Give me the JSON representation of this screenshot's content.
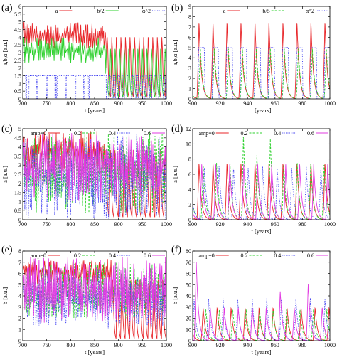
{
  "colors": {
    "red": "#e8262a",
    "green": "#2fd12f",
    "blue": "#3b3bf0",
    "magenta": "#e23be2",
    "purple": "#8d1a9a"
  },
  "chart_data": [
    {
      "panel": "(a)",
      "type": "line",
      "xlabel": "t [years]",
      "ylabel": "a,b,α [a.u.]",
      "xlim": [
        700,
        1000
      ],
      "ylim": [
        0,
        6
      ],
      "xticks": [
        700,
        750,
        800,
        850,
        900,
        950,
        1000
      ],
      "yticks": [
        0,
        0.5,
        1,
        1.5,
        2,
        2.5,
        3,
        3.5,
        4,
        4.5,
        5,
        5.5,
        6
      ],
      "legend": "top",
      "series": [
        {
          "name": "a",
          "color": "red",
          "style": "solid",
          "model": "chaos",
          "lo": 3.2,
          "hi": 5.0,
          "switch": 870,
          "lo2": 0,
          "hi2": 4.8,
          "period2": 9.5
        },
        {
          "name": "b/2",
          "color": "green",
          "style": "solid",
          "model": "chaos",
          "lo": 2.3,
          "hi": 4.0,
          "switch": 870,
          "lo2": 0,
          "hi2": 3.9,
          "period2": 9.5
        },
        {
          "name": "α^2",
          "color": "blue",
          "style": "dotted",
          "model": "alpha",
          "level": 1.5,
          "dips": [
            707,
            712,
            730,
            750,
            768,
            771,
            790,
            810,
            828,
            838
          ],
          "switch": 870,
          "hi2": 1.5,
          "period2": 9.5
        }
      ]
    },
    {
      "panel": "(b)",
      "type": "line",
      "xlabel": "t [years]",
      "ylabel": "a,b,α [a.u.]",
      "xlim": [
        900,
        1000
      ],
      "ylim": [
        0,
        9
      ],
      "xticks": [
        900,
        920,
        940,
        960,
        980,
        1000
      ],
      "yticks": [
        0,
        1,
        2,
        3,
        4,
        5,
        6,
        7,
        8,
        9
      ],
      "legend": "top",
      "series": [
        {
          "name": "a",
          "color": "red",
          "style": "solid",
          "model": "spike",
          "period": 10.2,
          "phase": 903,
          "peak": 7.6
        },
        {
          "name": "b/5",
          "color": "green",
          "style": "dashed",
          "model": "spike",
          "period": 10.2,
          "phase": 904,
          "peak": 5.0
        },
        {
          "name": "α^2",
          "color": "blue",
          "style": "dotted",
          "model": "plateau",
          "period": 10.2,
          "phase": 904,
          "peak": 5.0
        }
      ]
    },
    {
      "panel": "(c)",
      "type": "line",
      "xlabel": "",
      "ylabel": "a [a.u.]",
      "xlim": [
        700,
        1000
      ],
      "ylim": [
        0,
        5
      ],
      "xticks": [
        700,
        750,
        800,
        850,
        900,
        950,
        1000
      ],
      "yticks": [
        0,
        0.5,
        1,
        1.5,
        2,
        2.5,
        3,
        3.5,
        4,
        4.5,
        5
      ],
      "legend": "top",
      "series": [
        {
          "name": "amp=0",
          "color": "red",
          "style": "solid",
          "model": "chaos",
          "lo": 2.6,
          "hi": 4.9,
          "switch": 868,
          "lo2": 0,
          "hi2": 4.6,
          "period2": 9.5
        },
        {
          "name": "0.2",
          "color": "green",
          "style": "dashed",
          "model": "chaos",
          "lo": 0.3,
          "hi": 4.9,
          "switch": 2000
        },
        {
          "name": "0.4",
          "color": "blue",
          "style": "dotted",
          "model": "chaos",
          "lo": 0.0,
          "hi": 4.8,
          "switch": 2000
        },
        {
          "name": "0.6",
          "color": "magenta",
          "style": "solid",
          "model": "chaos",
          "lo": 1.0,
          "hi": 4.8,
          "switch": 2000
        }
      ]
    },
    {
      "panel": "(d)",
      "type": "line",
      "xlabel": "t [years]",
      "ylabel": "a [a.u.]",
      "xlim": [
        900,
        1000
      ],
      "ylim": [
        0,
        12
      ],
      "xticks": [
        900,
        920,
        940,
        960,
        980,
        1000
      ],
      "yticks": [
        0,
        2,
        4,
        6,
        8,
        10,
        12
      ],
      "legend": "top",
      "series": [
        {
          "name": "amp=0",
          "color": "red",
          "style": "solid",
          "model": "spike",
          "period": 10.2,
          "phase": 903,
          "peak": 7.6
        },
        {
          "name": "0.2",
          "color": "green",
          "style": "dashed",
          "model": "spike",
          "period": 9.8,
          "phase": 906,
          "peak": 7.5,
          "boost": [
            [
              938,
              11.3
            ],
            [
              943,
              8.5
            ],
            [
              955,
              10.9
            ]
          ]
        },
        {
          "name": "0.4",
          "color": "blue",
          "style": "dotted",
          "model": "spike",
          "period": 10.6,
          "phase": 907,
          "peak": 7.0
        },
        {
          "name": "0.6",
          "color": "magenta",
          "style": "solid",
          "model": "spike",
          "period": 10.2,
          "phase": 905,
          "peak": 7.3
        }
      ]
    },
    {
      "panel": "(e)",
      "type": "line",
      "xlabel": "t [years]",
      "ylabel": "b [a.u.]",
      "xlim": [
        700,
        1000
      ],
      "ylim": [
        0,
        8
      ],
      "xticks": [
        700,
        750,
        800,
        850,
        900,
        950,
        1000
      ],
      "yticks": [
        0,
        1,
        2,
        3,
        4,
        5,
        6,
        7,
        8
      ],
      "legend": "top",
      "series": [
        {
          "name": "amp=0",
          "color": "red",
          "style": "solid",
          "model": "chaos",
          "lo": 5.0,
          "hi": 7.3,
          "switch": 885,
          "lo2": 0,
          "hi2": 6.5,
          "period2": 9.5
        },
        {
          "name": "0.2",
          "color": "green",
          "style": "dashed",
          "model": "chaos",
          "lo": 2.0,
          "hi": 7.0,
          "switch": 2000
        },
        {
          "name": "0.4",
          "color": "blue",
          "style": "dotted",
          "model": "chaos",
          "lo": 1.0,
          "hi": 6.5,
          "switch": 2000
        },
        {
          "name": "0.6",
          "color": "magenta",
          "style": "solid",
          "model": "chaos",
          "lo": 1.5,
          "hi": 7.5,
          "switch": 2000
        }
      ]
    },
    {
      "panel": "(f)",
      "type": "line",
      "xlabel": "t [years]",
      "ylabel": "b [a.u.]",
      "xlim": [
        900,
        1000
      ],
      "ylim": [
        0,
        80
      ],
      "xticks": [
        900,
        920,
        940,
        960,
        980,
        1000
      ],
      "yticks": [
        0,
        10,
        20,
        30,
        40,
        50,
        60,
        70,
        80
      ],
      "legend": "top",
      "series": [
        {
          "name": "amp=0",
          "color": "red",
          "style": "solid",
          "model": "spike",
          "period": 10.2,
          "phase": 906,
          "peak": 30
        },
        {
          "name": "0.2",
          "color": "green",
          "style": "dashed",
          "model": "spike",
          "period": 9.8,
          "phase": 908,
          "peak": 28
        },
        {
          "name": "0.4",
          "color": "blue",
          "style": "dotted",
          "model": "spike",
          "period": 10.6,
          "phase": 910,
          "peak": 38
        },
        {
          "name": "0.6",
          "color": "magenta",
          "style": "solid",
          "model": "spike",
          "period": 10.2,
          "phase": 901,
          "peak": 30,
          "boost": [
            [
              901,
              72
            ],
            [
              965,
              45
            ],
            [
              982,
              52
            ]
          ]
        }
      ]
    }
  ]
}
